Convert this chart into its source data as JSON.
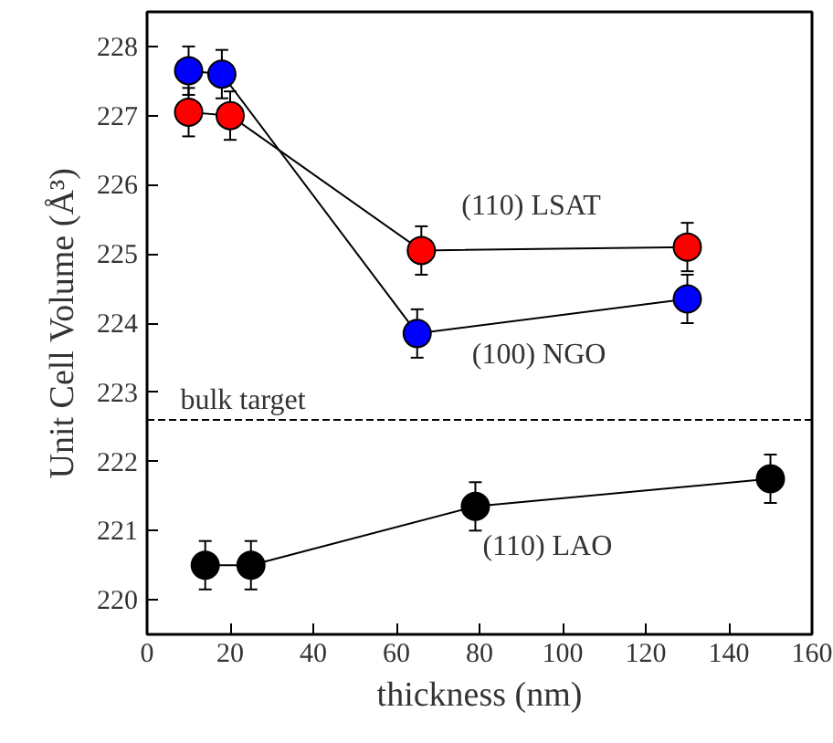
{
  "chart_data": {
    "type": "line",
    "xlabel": "thickness (nm)",
    "ylabel": "Unit Cell Volume (Å³)",
    "xlim": [
      0,
      160
    ],
    "ylim": [
      219.5,
      228.5
    ],
    "xticks": [
      0,
      20,
      40,
      60,
      80,
      100,
      120,
      140,
      160
    ],
    "yticks": [
      220,
      221,
      222,
      223,
      224,
      225,
      226,
      227,
      228
    ],
    "grid": false,
    "marker": "circle",
    "line_style": "solid",
    "series": [
      {
        "name": "(110) LSAT",
        "color": "#ff0000",
        "x": [
          10,
          20,
          66,
          130
        ],
        "values": [
          227.05,
          227.0,
          225.05,
          225.1
        ],
        "errors": [
          0.35,
          0.35,
          0.35,
          0.35
        ]
      },
      {
        "name": "(100) NGO",
        "color": "#0000ff",
        "x": [
          10,
          18,
          65,
          130
        ],
        "values": [
          227.65,
          227.6,
          223.85,
          224.35
        ],
        "errors": [
          0.35,
          0.35,
          0.35,
          0.35
        ]
      },
      {
        "name": "(110) LAO",
        "color": "#000000",
        "x": [
          14,
          25,
          79,
          150
        ],
        "values": [
          220.5,
          220.5,
          221.35,
          221.75
        ],
        "errors": [
          0.35,
          0.35,
          0.35,
          0.35
        ]
      }
    ],
    "ref_lines": [
      {
        "axis": "y",
        "value": 222.6,
        "label": "bulk target",
        "color": "#000000",
        "line_style": "dashed"
      }
    ]
  }
}
